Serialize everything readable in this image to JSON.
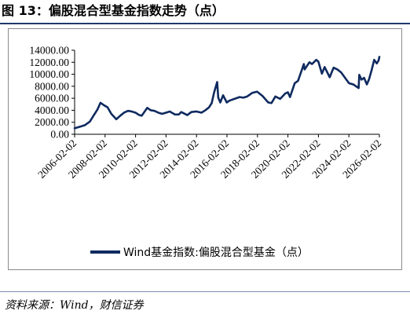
{
  "figure": {
    "title": "图 13：偏股混合型基金指数走势（点）",
    "source": "资料来源：Wind，财信证券"
  },
  "chart_data": {
    "type": "line",
    "title": "",
    "xlabel": "",
    "ylabel": "",
    "ylim": [
      0,
      14000
    ],
    "yticks": [
      "0.00",
      "2000.00",
      "4000.00",
      "6000.00",
      "8000.00",
      "10000.00",
      "12000.00",
      "14000.00"
    ],
    "xticks": [
      "2006-02-02",
      "2008-02-02",
      "2010-02-02",
      "2012-02-02",
      "2014-02-02",
      "2016-02-02",
      "2018-02-02",
      "2020-02-02",
      "2022-02-02",
      "2024-02-02",
      "2026-02-02"
    ],
    "xlim": [
      "2006-02-02",
      "2026-02-02"
    ],
    "grid": false,
    "legend_position": "bottom",
    "series_color": "#0f2a5f",
    "series": [
      {
        "name": "Wind基金指数:偏股混合型基金（点）",
        "x": [
          "2006-02-02",
          "2006-06-01",
          "2006-10-01",
          "2007-02-01",
          "2007-05-01",
          "2007-08-01",
          "2007-10-15",
          "2008-01-15",
          "2008-04-01",
          "2008-07-01",
          "2008-10-28",
          "2009-02-01",
          "2009-05-01",
          "2009-08-03",
          "2009-11-01",
          "2010-02-01",
          "2010-05-01",
          "2010-07-01",
          "2010-11-08",
          "2011-02-01",
          "2011-05-01",
          "2011-08-01",
          "2011-11-01",
          "2012-02-01",
          "2012-05-01",
          "2012-09-01",
          "2012-12-03",
          "2013-02-01",
          "2013-06-25",
          "2013-10-01",
          "2014-02-01",
          "2014-06-01",
          "2014-09-01",
          "2014-12-01",
          "2015-02-01",
          "2015-04-01",
          "2015-06-12",
          "2015-07-08",
          "2015-08-26",
          "2015-11-01",
          "2016-01-28",
          "2016-04-01",
          "2016-08-01",
          "2016-12-01",
          "2017-03-01",
          "2017-06-01",
          "2017-10-01",
          "2018-01-24",
          "2018-06-01",
          "2018-10-18",
          "2019-01-04",
          "2019-04-08",
          "2019-08-01",
          "2019-12-01",
          "2020-02-01",
          "2020-03-23",
          "2020-07-13",
          "2020-10-01",
          "2021-02-18",
          "2021-03-09",
          "2021-07-01",
          "2021-09-01",
          "2021-12-13",
          "2022-02-01",
          "2022-04-27",
          "2022-07-01",
          "2022-10-31",
          "2023-02-01",
          "2023-05-01",
          "2023-08-01",
          "2023-10-23",
          "2024-02-05",
          "2024-05-20",
          "2024-09-23",
          "2024-10-08",
          "2024-12-01",
          "2025-02-01",
          "2025-04-08",
          "2025-06-01",
          "2025-08-01",
          "2025-10-01",
          "2025-12-01",
          "2026-01-15",
          "2026-02-02"
        ],
        "values": [
          1000,
          1250,
          1500,
          2100,
          3100,
          4100,
          5250,
          4800,
          4500,
          3400,
          2500,
          3100,
          3600,
          3900,
          3800,
          3600,
          3200,
          3100,
          4400,
          4000,
          3900,
          3600,
          3400,
          3600,
          3800,
          3300,
          3300,
          3700,
          3200,
          3700,
          3800,
          3600,
          4000,
          4500,
          5200,
          7000,
          8700,
          6100,
          5300,
          6500,
          5300,
          5600,
          5900,
          6200,
          6100,
          6300,
          6900,
          7100,
          6400,
          5300,
          5200,
          6300,
          5900,
          6800,
          7000,
          6200,
          8500,
          8900,
          11700,
          10800,
          12000,
          11700,
          12400,
          12100,
          10100,
          11200,
          9500,
          11100,
          10800,
          10300,
          9500,
          8500,
          8300,
          7700,
          9900,
          9100,
          9400,
          8300,
          9200,
          10700,
          12400,
          11800,
          12300,
          12900
        ]
      }
    ]
  }
}
